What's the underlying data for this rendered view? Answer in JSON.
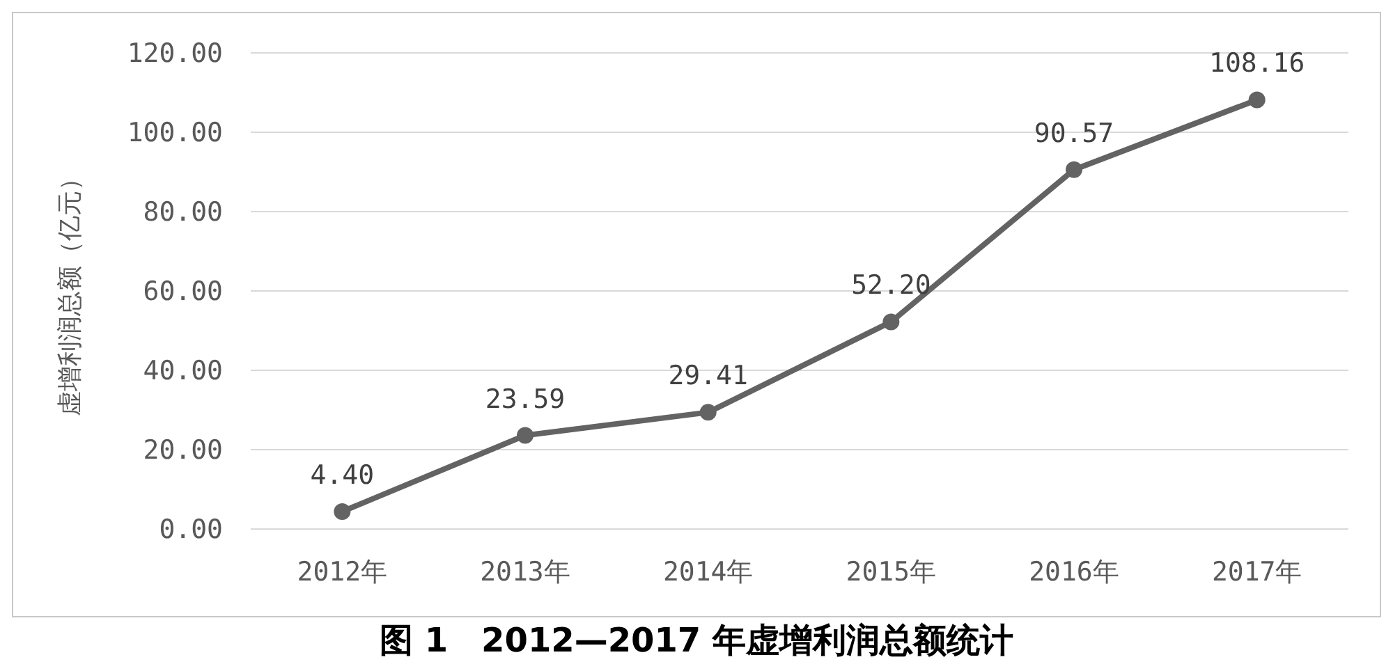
{
  "chart_data": {
    "type": "line",
    "title": "图 1　2012—2017 年虚增利润总额统计",
    "ylabel": "虚增利润总额（亿元）",
    "categories": [
      "2012年",
      "2013年",
      "2014年",
      "2015年",
      "2016年",
      "2017年"
    ],
    "series": [
      {
        "color": "#636363",
        "values": [
          4.4,
          23.59,
          29.41,
          52.2,
          90.57,
          108.16
        ]
      }
    ],
    "value_labels": [
      "4.40",
      "23.59",
      "29.41",
      "52.20",
      "90.57",
      "108.16"
    ],
    "ylim": [
      0,
      120
    ],
    "yticks": [
      {
        "value": 0,
        "label": "0.00"
      },
      {
        "value": 20,
        "label": "20.00"
      },
      {
        "value": 40,
        "label": "40.00"
      },
      {
        "value": 60,
        "label": "60.00"
      },
      {
        "value": 80,
        "label": "80.00"
      },
      {
        "value": 100,
        "label": "100.00"
      },
      {
        "value": 120,
        "label": "120.00"
      }
    ],
    "grid": "y",
    "marker": "circle",
    "line_style": "solid"
  }
}
